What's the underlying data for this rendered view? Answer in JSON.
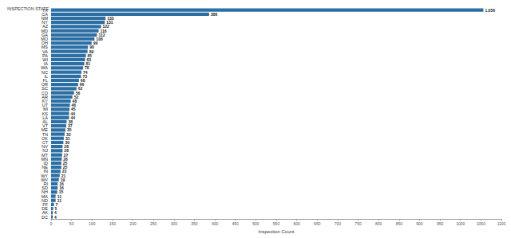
{
  "chart_data": {
    "type": "bar",
    "orientation": "horizontal",
    "title": "INSPECTION STATE",
    "x_label": "Inspection Count",
    "categories": [
      "TX",
      "CA",
      "NM",
      "NY",
      "AZ",
      "MD",
      "GA",
      "MO",
      "OH",
      "MS",
      "VA",
      "PA",
      "WI",
      "IA",
      "WA",
      "NC",
      "IL",
      "FL",
      "OR",
      "SC",
      "CO",
      "AR",
      "KY",
      "UT",
      "MI",
      "KS",
      "LA",
      "AL",
      "VT",
      "ME",
      "TN",
      "OK",
      "CT",
      "NV",
      "NJ",
      "MT",
      "MN",
      "ID",
      "NE",
      "IN",
      "WY",
      "WV",
      "RI",
      "SD",
      "NH",
      "MA",
      "ND",
      "FF",
      "DE",
      "AK",
      "DC"
    ],
    "values": [
      1056,
      386,
      133,
      131,
      122,
      116,
      112,
      106,
      99,
      90,
      89,
      85,
      83,
      81,
      78,
      74,
      73,
      68,
      66,
      62,
      56,
      52,
      48,
      46,
      45,
      44,
      44,
      38,
      37,
      35,
      33,
      31,
      30,
      28,
      28,
      27,
      26,
      25,
      25,
      23,
      21,
      19,
      16,
      16,
      15,
      11,
      11,
      7,
      5,
      4,
      4
    ],
    "value_labels": [
      "1,056",
      "386",
      "133",
      "131",
      "122",
      "116",
      "112",
      "106",
      "99",
      "90",
      "89",
      "85",
      "83",
      "81",
      "78",
      "74",
      "73",
      "68",
      "66",
      "62",
      "56",
      "52",
      "48",
      "46",
      "45",
      "44",
      "44",
      "38",
      "37",
      "35",
      "33",
      "31",
      "30",
      "28",
      "28",
      "27",
      "26",
      "25",
      "25",
      "23",
      "21",
      "19",
      "16",
      "16",
      "15",
      "11",
      "11",
      "7",
      "5",
      "4",
      "4"
    ],
    "color": "#2c6fa5",
    "xlim": [
      0,
      1100
    ],
    "xticks": [
      0,
      50,
      100,
      150,
      200,
      250,
      300,
      350,
      400,
      450,
      500,
      550,
      600,
      650,
      700,
      750,
      800,
      850,
      900,
      950,
      1000,
      1050,
      1100
    ],
    "data_labels": true,
    "grid": false
  }
}
